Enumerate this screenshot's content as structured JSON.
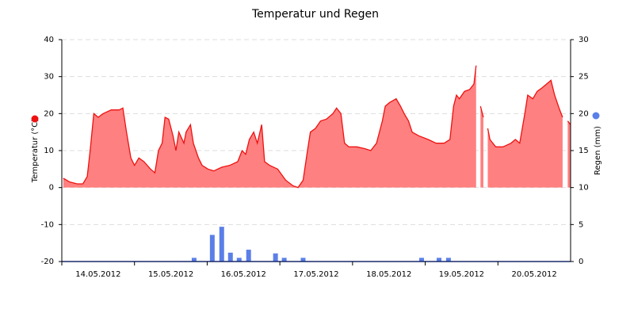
{
  "chart_data": {
    "type": "area-bar",
    "title": "Temperatur und Regen",
    "ylabel": "Temperatur (°C)",
    "y2label": "Regen (mm)",
    "xlim": [
      0,
      7
    ],
    "xticks": [
      {
        "value": 0,
        "label": "14.05.2012"
      },
      {
        "value": 1,
        "label": "15.05.2012"
      },
      {
        "value": 2,
        "label": "16.05.2012"
      },
      {
        "value": 3,
        "label": "17.05.2012"
      },
      {
        "value": 4,
        "label": "18.05.2012"
      },
      {
        "value": 5,
        "label": "19.05.2012"
      },
      {
        "value": 6,
        "label": "20.05.2012"
      }
    ],
    "ylim": [
      -20,
      40
    ],
    "yticks": [
      -20,
      -10,
      0,
      10,
      20,
      30,
      40
    ],
    "y2lim": [
      0,
      30
    ],
    "y2ticks": [
      0,
      5,
      10,
      15,
      20,
      25,
      30
    ],
    "grid": true,
    "series": [
      {
        "name": "Temperatur (°C)",
        "type": "area",
        "color": "#ee1111",
        "fill": "#ff8080",
        "x": [
          0.02,
          0.11,
          0.21,
          0.29,
          0.35,
          0.39,
          0.44,
          0.5,
          0.57,
          0.68,
          0.79,
          0.84,
          0.89,
          0.95,
          1.0,
          1.06,
          1.13,
          1.22,
          1.28,
          1.33,
          1.38,
          1.42,
          1.47,
          1.53,
          1.57,
          1.61,
          1.68,
          1.71,
          1.77,
          1.81,
          1.88,
          1.93,
          2.01,
          2.09,
          2.2,
          2.31,
          2.42,
          2.48,
          2.53,
          2.58,
          2.64,
          2.69,
          2.75,
          2.79,
          2.86,
          2.97,
          3.08,
          3.18,
          3.25,
          3.32,
          3.38,
          3.42,
          3.49,
          3.56,
          3.64,
          3.73,
          3.78,
          3.84,
          3.89,
          3.95,
          4.06,
          4.17,
          4.25,
          4.33,
          4.41,
          4.45,
          4.51,
          4.6,
          4.66,
          4.71,
          4.77,
          4.82,
          4.91,
          5.04,
          5.15,
          5.26,
          5.34,
          5.39,
          5.43,
          5.47,
          5.54,
          5.61,
          5.67,
          5.7,
          5.72,
          5.76,
          5.8,
          5.82,
          5.86,
          5.89,
          5.97,
          6.07,
          6.18,
          6.24,
          6.3,
          6.37,
          6.41,
          6.48,
          6.54,
          6.61,
          6.67,
          6.73,
          6.78,
          6.85,
          6.89,
          6.92,
          6.96,
          7.0
        ],
        "values": [
          2.5,
          1.5,
          1,
          1,
          3,
          10,
          20,
          19,
          20,
          21,
          21,
          21.5,
          15,
          8,
          6,
          8,
          7,
          5,
          4,
          10,
          12,
          19,
          18.5,
          14,
          10,
          15,
          12,
          15,
          17,
          12,
          8,
          6,
          5,
          4.5,
          5.5,
          6,
          7,
          10,
          9,
          13,
          15,
          12,
          17,
          7,
          6,
          5,
          2,
          0.5,
          0,
          2,
          10,
          15,
          16,
          18,
          18.5,
          20,
          21.5,
          20,
          12,
          11,
          11,
          10.5,
          10,
          12,
          18,
          22,
          23,
          24,
          22,
          20,
          18,
          15,
          14,
          13,
          12,
          12,
          13,
          22,
          25,
          24,
          26,
          26.5,
          28,
          33,
          null,
          22,
          19,
          null,
          16,
          13,
          11,
          11,
          12,
          13,
          12,
          20,
          25,
          24,
          26,
          27,
          28,
          29,
          25,
          21,
          19,
          null,
          18,
          17
        ]
      },
      {
        "name": "Regen (mm)",
        "type": "bar",
        "axis": "y2",
        "color": "#5b7fe8",
        "x": [
          1.82,
          2.07,
          2.2,
          2.32,
          2.44,
          2.57,
          2.94,
          3.06,
          3.32,
          4.95,
          5.19,
          5.32
        ],
        "values": [
          0.5,
          3.6,
          4.7,
          1.2,
          0.5,
          1.6,
          1.1,
          0.5,
          0.5,
          0.5,
          0.5,
          0.5
        ]
      }
    ]
  }
}
